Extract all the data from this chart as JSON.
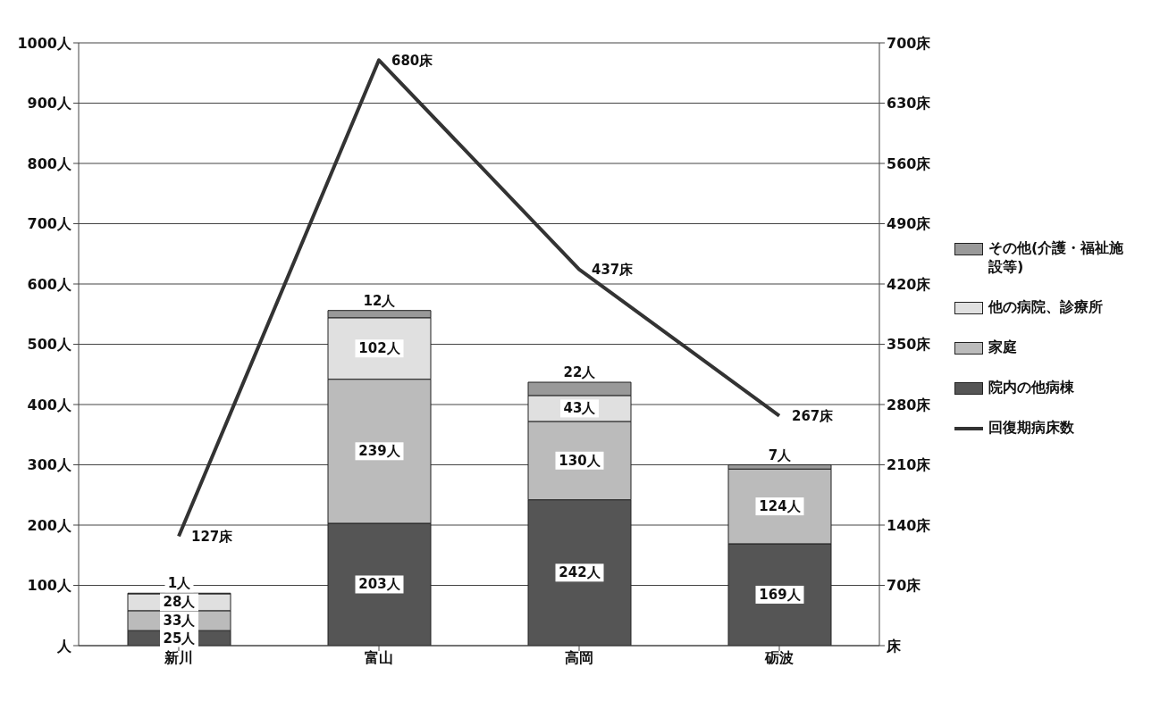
{
  "chart_data": {
    "type": "bar",
    "stacked": true,
    "categories": [
      "新川",
      "富山",
      "高岡",
      "砺波"
    ],
    "series": [
      {
        "name": "院内の他病棟",
        "color": "#555555",
        "values": [
          25,
          203,
          242,
          169
        ],
        "value_labels": [
          "25人",
          "203人",
          "242人",
          "169人"
        ]
      },
      {
        "name": "家庭",
        "color": "#bbbbbb",
        "values": [
          33,
          239,
          130,
          124
        ],
        "value_labels": [
          "33人",
          "239人",
          "130人",
          "124人"
        ]
      },
      {
        "name": "他の病院、診療所",
        "color": "#e0e0e0",
        "values": [
          28,
          102,
          43,
          null
        ],
        "value_labels": [
          "28人",
          "102人",
          "43人",
          null
        ]
      },
      {
        "name": "その他(介護・福祉施設等)",
        "color": "#999999",
        "values": [
          1,
          12,
          22,
          7
        ],
        "value_labels": [
          "1人",
          "12人",
          "22人",
          "7人"
        ]
      },
      {
        "name": "回復期病床数",
        "type": "line",
        "axis": "y2",
        "color": "#333333",
        "values": [
          127,
          680,
          437,
          267
        ],
        "value_labels": [
          "127床",
          "680床",
          "437床",
          "267床"
        ]
      }
    ],
    "ylim": [
      0,
      1000
    ],
    "yticks": [
      {
        "value": 0,
        "label": "人"
      },
      {
        "value": 100,
        "label": "100人"
      },
      {
        "value": 200,
        "label": "200人"
      },
      {
        "value": 300,
        "label": "300人"
      },
      {
        "value": 400,
        "label": "400人"
      },
      {
        "value": 500,
        "label": "500人"
      },
      {
        "value": 600,
        "label": "600人"
      },
      {
        "value": 700,
        "label": "700人"
      },
      {
        "value": 800,
        "label": "800人"
      },
      {
        "value": 900,
        "label": "900人"
      },
      {
        "value": 1000,
        "label": "1000人"
      }
    ],
    "y2lim": [
      0,
      700
    ],
    "y2ticks": [
      {
        "value": 0,
        "label": "床"
      },
      {
        "value": 70,
        "label": "70床"
      },
      {
        "value": 140,
        "label": "140床"
      },
      {
        "value": 210,
        "label": "210床"
      },
      {
        "value": 280,
        "label": "280床"
      },
      {
        "value": 350,
        "label": "350床"
      },
      {
        "value": 420,
        "label": "420床"
      },
      {
        "value": 490,
        "label": "490床"
      },
      {
        "value": 560,
        "label": "560床"
      },
      {
        "value": 630,
        "label": "630床"
      },
      {
        "value": 700,
        "label": "700床"
      }
    ],
    "grid": "y",
    "legend": "right",
    "marker": "none"
  }
}
